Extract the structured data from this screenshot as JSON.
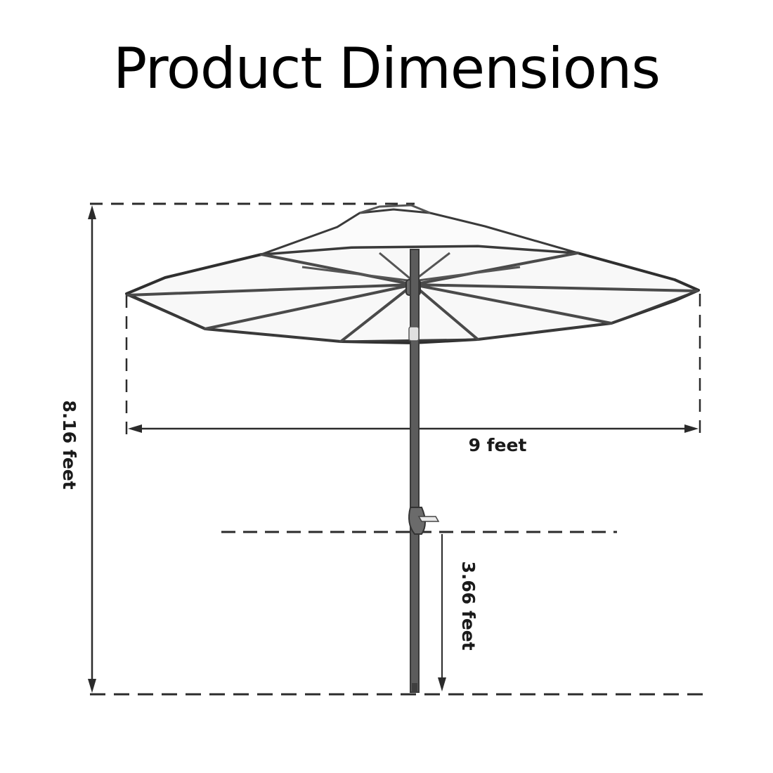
{
  "title": "Product Dimensions",
  "dimensions": {
    "total_height": "8.16 feet",
    "canopy_width": "9 feet",
    "crank_height": "3.66 feet"
  },
  "colors": {
    "line": "#2b2b2b",
    "canopy_fill": "#f7f7f7",
    "pole": "#5a5a5a"
  }
}
